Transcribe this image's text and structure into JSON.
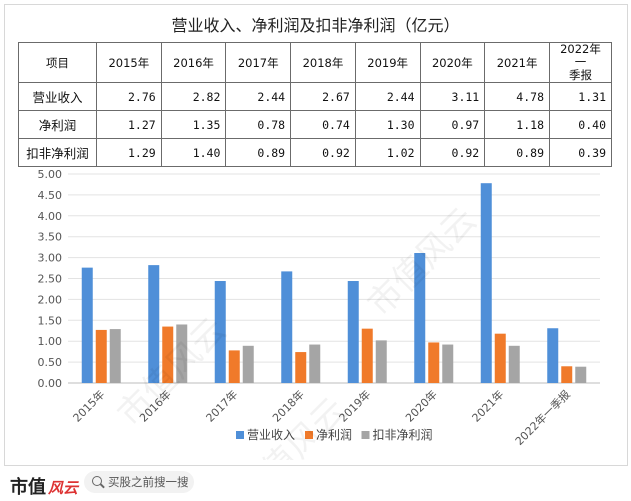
{
  "title": "营业收入、净利润及扣非净利润（亿元）",
  "table": {
    "header": [
      "项目",
      "2015年",
      "2016年",
      "2017年",
      "2018年",
      "2019年",
      "2020年",
      "2021年",
      "2022年一季报"
    ],
    "header_last_line1": "2022年一",
    "header_last_line2": "季报",
    "rows": [
      {
        "label": "营业收入",
        "values": [
          "2.76",
          "2.82",
          "2.44",
          "2.67",
          "2.44",
          "3.11",
          "4.78",
          "1.31"
        ]
      },
      {
        "label": "净利润",
        "values": [
          "1.27",
          "1.35",
          "0.78",
          "0.74",
          "1.30",
          "0.97",
          "1.18",
          "0.40"
        ]
      },
      {
        "label": "扣非净利润",
        "values": [
          "1.29",
          "1.40",
          "0.89",
          "0.92",
          "1.02",
          "0.92",
          "0.89",
          "0.39"
        ]
      }
    ]
  },
  "chart_data": {
    "type": "bar",
    "categories": [
      "2015年",
      "2016年",
      "2017年",
      "2018年",
      "2019年",
      "2020年",
      "2021年",
      "2022年一季报"
    ],
    "series": [
      {
        "name": "营业收入",
        "color": "#4f8fd8",
        "values": [
          2.76,
          2.82,
          2.44,
          2.67,
          2.44,
          3.11,
          4.78,
          1.31
        ]
      },
      {
        "name": "净利润",
        "color": "#f07a2a",
        "values": [
          1.27,
          1.35,
          0.78,
          0.74,
          1.3,
          0.97,
          1.18,
          0.4
        ]
      },
      {
        "name": "扣非净利润",
        "color": "#a5a5a5",
        "values": [
          1.29,
          1.4,
          0.89,
          0.92,
          1.02,
          0.92,
          0.89,
          0.39
        ]
      }
    ],
    "ylim": [
      0,
      5
    ],
    "yticks": [
      "0.00",
      "0.50",
      "1.00",
      "1.50",
      "2.00",
      "2.50",
      "3.00",
      "3.50",
      "4.00",
      "4.50",
      "5.00"
    ],
    "grid": true,
    "legend_position": "bottom"
  },
  "watermark": "市值风云",
  "footer": {
    "logo_text": "市值",
    "logo_mark": "风云",
    "search_placeholder": "买股之前搜一搜"
  }
}
